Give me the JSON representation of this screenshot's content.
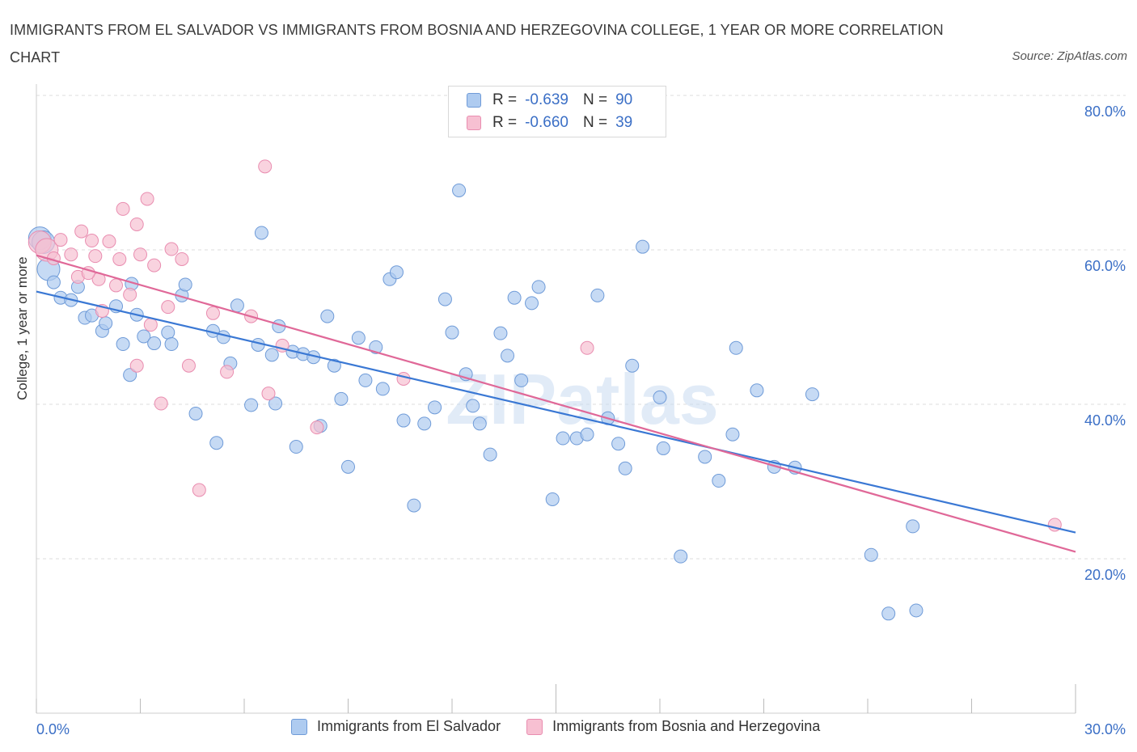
{
  "title": "IMMIGRANTS FROM EL SALVADOR VS IMMIGRANTS FROM BOSNIA AND HERZEGOVINA COLLEGE, 1 YEAR OR MORE CORRELATION CHART",
  "source": "Source: ZipAtlas.com",
  "watermark": "ZIPatlas",
  "legend_top": [
    {
      "r_label": "R =",
      "r_value": "-0.639",
      "n_label": "N =",
      "n_value": "90"
    },
    {
      "r_label": "R =",
      "r_value": "-0.660",
      "n_label": "N =",
      "n_value": "39"
    }
  ],
  "legend_bottom": [
    "Immigrants from El Salvador",
    "Immigrants from Bosnia and Herzegovina"
  ],
  "colors": {
    "blue_fill": "#aecbf0",
    "blue_stroke": "#6f9bd8",
    "blue_line": "#3a78d4",
    "pink_fill": "#f7c0d2",
    "pink_stroke": "#e98db0",
    "pink_line": "#e06898",
    "tick_text": "#3b6fc6",
    "grid": "#dddddd"
  },
  "chart_data": {
    "type": "scatter",
    "title": "IMMIGRANTS FROM EL SALVADOR VS IMMIGRANTS FROM BOSNIA AND HERZEGOVINA COLLEGE, 1 YEAR OR MORE CORRELATION CHART",
    "xlabel": "",
    "ylabel": "College, 1 year or more",
    "xlim": [
      0,
      30
    ],
    "ylim": [
      0,
      80
    ],
    "x_tick_labels": [
      "0.0%",
      "30.0%"
    ],
    "y_ticks": [
      20,
      40,
      60,
      80
    ],
    "y_tick_labels": [
      "20.0%",
      "40.0%",
      "60.0%",
      "80.0%"
    ],
    "grid": "horizontal dashed",
    "series": [
      {
        "name": "Immigrants from El Salvador",
        "color": "#aecbf0",
        "r": "-0.639",
        "n": "90",
        "trend": {
          "x": [
            0,
            30
          ],
          "y": [
            54.6,
            23.4
          ]
        },
        "points": [
          [
            0.1,
            61.5
          ],
          [
            0.2,
            61.0
          ],
          [
            0.35,
            57.5
          ],
          [
            0.5,
            55.8
          ],
          [
            0.7,
            53.8
          ],
          [
            1.0,
            53.5
          ],
          [
            1.2,
            55.2
          ],
          [
            1.4,
            51.2
          ],
          [
            1.6,
            51.5
          ],
          [
            1.9,
            49.5
          ],
          [
            2.0,
            50.5
          ],
          [
            2.3,
            52.7
          ],
          [
            2.5,
            47.8
          ],
          [
            2.7,
            43.8
          ],
          [
            2.75,
            55.6
          ],
          [
            2.9,
            51.6
          ],
          [
            3.1,
            48.8
          ],
          [
            3.4,
            47.9
          ],
          [
            3.8,
            49.3
          ],
          [
            3.9,
            47.8
          ],
          [
            4.2,
            54.1
          ],
          [
            4.3,
            55.5
          ],
          [
            4.6,
            38.8
          ],
          [
            5.1,
            49.5
          ],
          [
            5.2,
            35.0
          ],
          [
            5.4,
            48.7
          ],
          [
            5.6,
            45.3
          ],
          [
            5.8,
            52.8
          ],
          [
            6.2,
            39.9
          ],
          [
            6.4,
            47.7
          ],
          [
            6.5,
            62.2
          ],
          [
            6.8,
            46.4
          ],
          [
            6.9,
            40.1
          ],
          [
            7.0,
            50.1
          ],
          [
            7.4,
            46.8
          ],
          [
            7.5,
            34.5
          ],
          [
            7.7,
            46.5
          ],
          [
            8.0,
            46.1
          ],
          [
            8.2,
            37.2
          ],
          [
            8.4,
            51.4
          ],
          [
            8.6,
            45.0
          ],
          [
            8.8,
            40.7
          ],
          [
            9.0,
            31.9
          ],
          [
            9.3,
            48.6
          ],
          [
            9.5,
            43.1
          ],
          [
            9.8,
            47.4
          ],
          [
            10.0,
            42.0
          ],
          [
            10.2,
            56.2
          ],
          [
            10.4,
            57.1
          ],
          [
            10.6,
            37.9
          ],
          [
            10.9,
            26.9
          ],
          [
            11.2,
            37.5
          ],
          [
            11.5,
            39.6
          ],
          [
            11.8,
            53.6
          ],
          [
            12.0,
            49.3
          ],
          [
            12.2,
            67.7
          ],
          [
            12.4,
            43.9
          ],
          [
            12.6,
            39.8
          ],
          [
            12.8,
            37.5
          ],
          [
            13.1,
            33.5
          ],
          [
            13.4,
            49.2
          ],
          [
            13.6,
            46.3
          ],
          [
            13.8,
            53.8
          ],
          [
            14.0,
            43.1
          ],
          [
            14.3,
            53.1
          ],
          [
            14.5,
            55.2
          ],
          [
            14.9,
            27.7
          ],
          [
            15.2,
            35.6
          ],
          [
            15.6,
            35.6
          ],
          [
            15.9,
            36.1
          ],
          [
            16.2,
            54.1
          ],
          [
            16.5,
            38.2
          ],
          [
            16.8,
            34.9
          ],
          [
            17.0,
            31.7
          ],
          [
            17.2,
            45.0
          ],
          [
            17.5,
            60.4
          ],
          [
            18.0,
            40.9
          ],
          [
            18.1,
            34.3
          ],
          [
            18.6,
            20.3
          ],
          [
            19.3,
            33.2
          ],
          [
            19.7,
            30.1
          ],
          [
            20.1,
            36.1
          ],
          [
            20.2,
            47.3
          ],
          [
            20.8,
            41.8
          ],
          [
            21.3,
            31.9
          ],
          [
            21.9,
            31.8
          ],
          [
            22.4,
            41.3
          ],
          [
            24.1,
            20.5
          ],
          [
            25.3,
            24.2
          ],
          [
            25.4,
            13.3
          ],
          [
            24.6,
            12.9
          ]
        ]
      },
      {
        "name": "Immigrants from Bosnia and Herzegovina",
        "color": "#f7c0d2",
        "r": "-0.660",
        "n": "39",
        "trend": {
          "x": [
            0,
            30
          ],
          "y": [
            59.3,
            20.9
          ]
        },
        "points": [
          [
            0.1,
            61.0
          ],
          [
            0.3,
            60.0
          ],
          [
            0.5,
            58.9
          ],
          [
            0.7,
            61.3
          ],
          [
            1.0,
            59.4
          ],
          [
            1.2,
            56.5
          ],
          [
            1.3,
            62.4
          ],
          [
            1.6,
            61.2
          ],
          [
            1.7,
            59.2
          ],
          [
            1.8,
            56.2
          ],
          [
            1.9,
            52.1
          ],
          [
            2.1,
            61.1
          ],
          [
            2.3,
            55.4
          ],
          [
            2.4,
            58.8
          ],
          [
            2.5,
            65.3
          ],
          [
            2.7,
            54.2
          ],
          [
            2.9,
            63.3
          ],
          [
            3.0,
            59.4
          ],
          [
            3.2,
            66.6
          ],
          [
            3.3,
            50.3
          ],
          [
            3.4,
            58.0
          ],
          [
            3.6,
            40.1
          ],
          [
            3.8,
            52.6
          ],
          [
            3.9,
            60.1
          ],
          [
            4.2,
            58.8
          ],
          [
            4.4,
            45.0
          ],
          [
            4.7,
            28.9
          ],
          [
            5.1,
            51.8
          ],
          [
            5.5,
            44.2
          ],
          [
            6.2,
            51.4
          ],
          [
            6.6,
            70.8
          ],
          [
            6.7,
            41.4
          ],
          [
            7.1,
            47.6
          ],
          [
            8.1,
            37.0
          ],
          [
            10.6,
            43.3
          ],
          [
            15.9,
            47.3
          ],
          [
            29.4,
            24.4
          ],
          [
            2.9,
            45.0
          ],
          [
            1.5,
            57.0
          ]
        ]
      }
    ]
  }
}
